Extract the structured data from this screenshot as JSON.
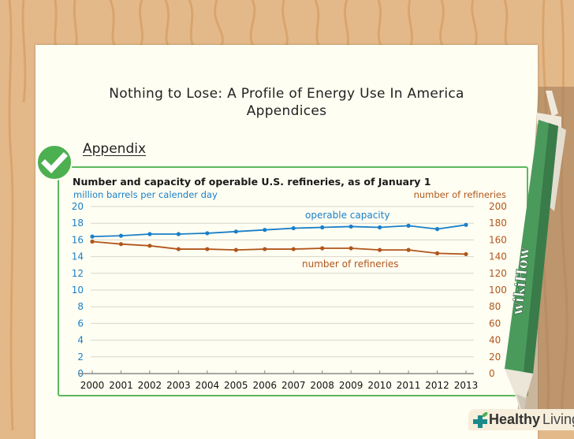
{
  "document": {
    "title_line1": "Nothing to Lose: A Profile of Energy Use In America",
    "title_line2": "Appendices",
    "section_heading": "Appendix"
  },
  "badge": {
    "icon": "checkmark-icon",
    "color": "#4cb050"
  },
  "pen": {
    "label": "wikiHow",
    "color": "#4a9a5c"
  },
  "brand": {
    "part1": "Healthy",
    "part2": "Living",
    "icon": "plus-leaf-icon"
  },
  "colors": {
    "left_axis": "#1a7fc9",
    "right_axis": "#b0561b",
    "box_border": "#5cb85c"
  },
  "chart_data": {
    "type": "line",
    "title": "Number and capacity of operable U.S. refineries, as of January 1",
    "xlabel": "",
    "ylabel_left": "million barrels per calender day",
    "ylabel_right": "number of refineries",
    "x": [
      "2000",
      "2001",
      "2002",
      "2003",
      "2004",
      "2005",
      "2006",
      "2007",
      "2008",
      "2009",
      "2010",
      "2011",
      "2012",
      "2013"
    ],
    "ylim_left": [
      0,
      20
    ],
    "ylim_right": [
      0,
      200
    ],
    "yticks_left": [
      "0",
      "2",
      "4",
      "6",
      "8",
      "10",
      "12",
      "14",
      "16",
      "18",
      "20"
    ],
    "yticks_right": [
      "0",
      "20",
      "40",
      "60",
      "80",
      "100",
      "120",
      "140",
      "160",
      "180",
      "200"
    ],
    "grid": true,
    "series": [
      {
        "name": "operable capacity",
        "axis": "left",
        "color": "#1a7fc9",
        "values": [
          16.4,
          16.5,
          16.7,
          16.7,
          16.8,
          17.0,
          17.2,
          17.4,
          17.5,
          17.6,
          17.5,
          17.7,
          17.3,
          17.8
        ]
      },
      {
        "name": "number of refineries",
        "axis": "right",
        "color": "#b0561b",
        "values": [
          158,
          155,
          153,
          149,
          149,
          148,
          149,
          149,
          150,
          150,
          148,
          148,
          144,
          143
        ]
      }
    ]
  }
}
